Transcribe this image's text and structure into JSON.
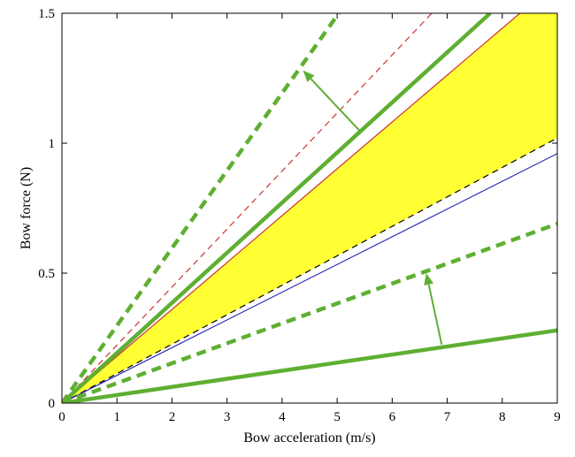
{
  "chart_data": {
    "type": "line",
    "title": "",
    "xlabel": "Bow acceleration (m/s)",
    "ylabel": "Bow force (N)",
    "xlim": [
      0,
      9
    ],
    "ylim": [
      0,
      1.5
    ],
    "xticks": [
      0,
      1,
      2,
      3,
      4,
      5,
      6,
      7,
      8,
      9
    ],
    "yticks": [
      0,
      0.5,
      1,
      1.5
    ],
    "xtick_labels": [
      "0",
      "1",
      "2",
      "3",
      "4",
      "5",
      "6",
      "7",
      "8",
      "9"
    ],
    "ytick_labels": [
      "0",
      "0.5",
      "1",
      "1.5"
    ],
    "grid": false,
    "legend": "none",
    "shaded_region": {
      "color": "#ffff33",
      "lower": {
        "x": [
          0,
          9
        ],
        "y": [
          0,
          1.02
        ]
      },
      "upper": {
        "x": [
          0,
          8.32,
          9
        ],
        "y": [
          0,
          1.5,
          1.5
        ]
      }
    },
    "series": [
      {
        "x": [
          0,
          9
        ],
        "y": [
          0,
          1.02
        ],
        "color": "#000000",
        "style": "dashed",
        "weight": "thin"
      },
      {
        "x": [
          0,
          9
        ],
        "y": [
          0,
          0.96
        ],
        "color": "#2b2bb3",
        "style": "solid",
        "weight": "thin"
      },
      {
        "x": [
          0,
          8.32
        ],
        "y": [
          0,
          1.5
        ],
        "color": "#cc3333",
        "style": "solid",
        "weight": "thin"
      },
      {
        "x": [
          0,
          6.72
        ],
        "y": [
          0,
          1.5
        ],
        "color": "#cc3333",
        "style": "dashed",
        "weight": "thin"
      },
      {
        "x": [
          0,
          7.78
        ],
        "y": [
          0,
          1.5
        ],
        "color": "#5faf32",
        "style": "solid",
        "weight": "thick"
      },
      {
        "x": [
          0,
          5.03
        ],
        "y": [
          0,
          1.5
        ],
        "color": "#5faf32",
        "style": "dashed",
        "weight": "thick"
      },
      {
        "x": [
          0,
          9
        ],
        "y": [
          0,
          0.28
        ],
        "color": "#5faf32",
        "style": "solid",
        "weight": "thick"
      },
      {
        "x": [
          0,
          9
        ],
        "y": [
          0,
          0.69
        ],
        "color": "#5faf32",
        "style": "dashed",
        "weight": "thick"
      }
    ],
    "annotations": [
      {
        "kind": "arrow",
        "color": "#5faf32",
        "from": [
          5.4,
          1.05
        ],
        "to": [
          4.38,
          1.28
        ]
      },
      {
        "kind": "arrow",
        "color": "#5faf32",
        "from": [
          6.9,
          0.225
        ],
        "to": [
          6.62,
          0.5
        ]
      }
    ]
  }
}
